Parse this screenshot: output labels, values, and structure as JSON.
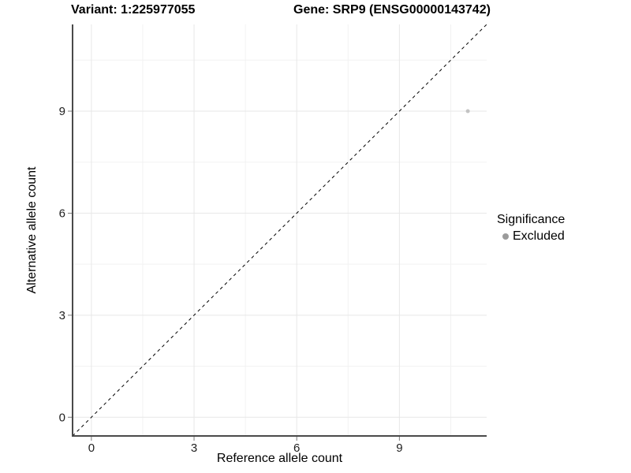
{
  "chart_data": {
    "type": "scatter",
    "title_left": "Variant: 1:225977055",
    "title_right": "Gene: SRP9 (ENSG00000143742)",
    "xlabel": "Reference allele count",
    "ylabel": "Alternative allele count",
    "xlim": [
      -0.55,
      11.55
    ],
    "ylim": [
      -0.55,
      11.55
    ],
    "x_ticks": [
      0,
      3,
      6,
      9
    ],
    "y_ticks": [
      0,
      3,
      6,
      9
    ],
    "x_minor_ticks": [
      1.5,
      4.5,
      7.5,
      10.5
    ],
    "y_minor_ticks": [
      1.5,
      4.5,
      7.5,
      10.5
    ],
    "grid": true,
    "series": [
      {
        "name": "Excluded",
        "points": [
          {
            "x": 11,
            "y": 9
          }
        ],
        "color": "#c3c3c3"
      }
    ],
    "reference_line": {
      "style": "dashed",
      "x1": -0.55,
      "y1": -0.55,
      "x2": 11.55,
      "y2": 11.55,
      "color": "#000000"
    },
    "legend": {
      "title": "Significance",
      "position": "right",
      "items": [
        {
          "label": "Excluded",
          "color": "#9b9b9b"
        }
      ]
    },
    "colors": {
      "background": "#ffffff",
      "axis_line": "#4a4a4a",
      "tick_mark": "#7a7a7a",
      "grid_major": "#e7e7e7",
      "grid_minor": "#f2f2f2",
      "point": "#c3c3c3",
      "text": "#000000"
    }
  }
}
